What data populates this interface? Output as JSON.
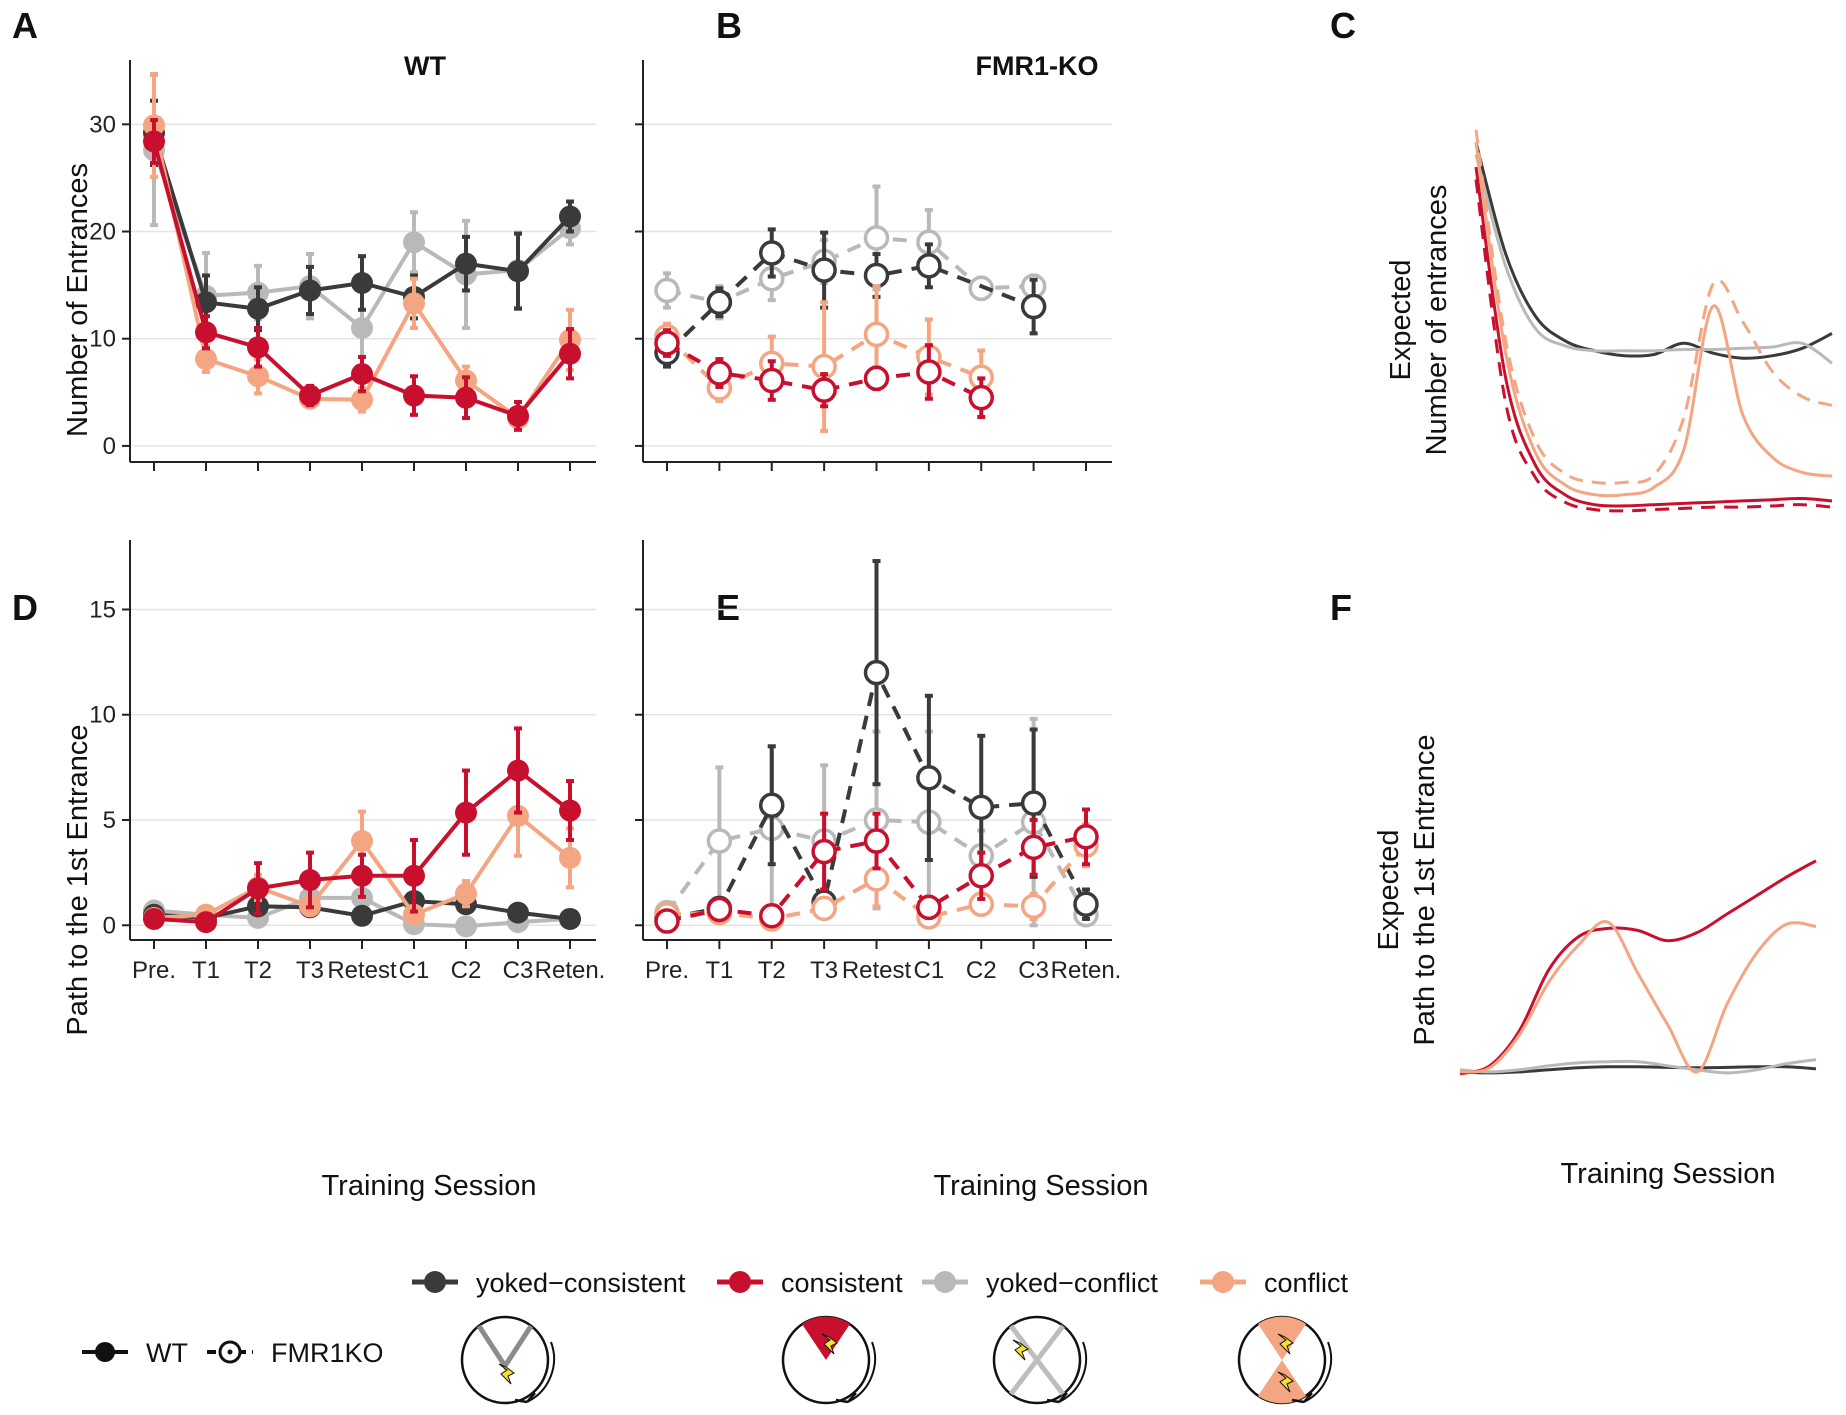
{
  "colors": {
    "yoked_consistent": "#3a3a3a",
    "consistent": "#c8102e",
    "yoked_conflict": "#b9b9b9",
    "conflict": "#f4a582"
  },
  "axes": {
    "entrances_label": "Number of Entrances",
    "path_label": "Path to the 1st Entrance",
    "x_label": "Training Session",
    "expected_entrances_line1": "Expected",
    "expected_entrances_line2": "Number of entrances",
    "expected_path_line1": "Expected",
    "expected_path_line2": "Path to the 1st Entrance"
  },
  "legend": {
    "genotype_wt": "WT",
    "genotype_ko": "FMR1KO",
    "groups": [
      "yoked−consistent",
      "consistent",
      "yoked−conflict",
      "conflict"
    ],
    "icons": [
      "arena-yoked-consistent-icon",
      "arena-consistent-icon",
      "arena-yoked-conflict-icon",
      "arena-conflict-icon"
    ]
  },
  "chart_data": [
    {
      "panel": "A",
      "type": "line",
      "title": "WT",
      "ylabel": "Number of Entrances",
      "categories": [
        "Pre.",
        "T1",
        "T2",
        "T3",
        "Retest",
        "C1",
        "C2",
        "C3",
        "Reten."
      ],
      "ylim": [
        -1.5,
        36
      ],
      "yticks": [
        0,
        10,
        20,
        30
      ],
      "grid": true,
      "show_x_tick_labels": false,
      "series": [
        {
          "key": "yoked_conflict",
          "values": [
            27.6,
            14.0,
            14.3,
            14.9,
            11.0,
            19.0,
            16.0,
            16.4,
            20.3
          ],
          "err": [
            7.0,
            4.0,
            2.5,
            3.0,
            4.0,
            2.8,
            5.0,
            3.5,
            1.5
          ]
        },
        {
          "key": "yoked_consistent",
          "values": [
            29.2,
            13.4,
            12.8,
            14.5,
            15.2,
            13.9,
            17.0,
            16.3,
            21.4
          ],
          "err": [
            3.0,
            2.5,
            2.0,
            2.2,
            2.5,
            2.0,
            2.5,
            3.5,
            1.4
          ]
        },
        {
          "key": "conflict",
          "values": [
            29.9,
            8.1,
            6.5,
            4.4,
            4.3,
            13.3,
            6.1,
            2.6,
            9.9
          ],
          "err": [
            4.8,
            1.2,
            1.6,
            0.8,
            1.1,
            2.3,
            1.3,
            0.8,
            2.8
          ]
        },
        {
          "key": "consistent",
          "values": [
            28.4,
            10.6,
            9.2,
            4.7,
            6.7,
            4.7,
            4.5,
            2.8,
            8.6
          ],
          "err": [
            2.0,
            1.5,
            1.8,
            0.9,
            1.6,
            1.8,
            1.9,
            1.3,
            2.3
          ]
        }
      ]
    },
    {
      "panel": "B",
      "type": "line",
      "title": "FMR1-KO",
      "categories": [
        "Pre.",
        "T1",
        "T2",
        "T3",
        "Retest",
        "C1",
        "C2",
        "C3",
        "Reten."
      ],
      "ylim": [
        -1.5,
        36
      ],
      "yticks": [
        0,
        10,
        20,
        30
      ],
      "grid": true,
      "show_x_tick_labels": false,
      "dashed": true,
      "series": [
        {
          "key": "yoked_conflict",
          "values": [
            14.5,
            13.4,
            15.6,
            17.2,
            19.4,
            19.0,
            14.7,
            14.9,
            null
          ],
          "err": [
            1.6,
            1.5,
            2.0,
            2.0,
            4.8,
            3.0,
            1.0,
            1.0,
            null
          ]
        },
        {
          "key": "yoked_consistent",
          "values": [
            8.7,
            13.4,
            18.0,
            16.4,
            15.9,
            16.8,
            null,
            13.0,
            null
          ],
          "err": [
            1.3,
            1.3,
            2.2,
            3.5,
            2.0,
            2.0,
            null,
            2.5,
            null
          ]
        },
        {
          "key": "conflict",
          "values": [
            10.2,
            5.4,
            7.7,
            7.4,
            10.4,
            8.3,
            6.4,
            null,
            null
          ],
          "err": [
            1.2,
            1.2,
            2.5,
            6.0,
            4.5,
            3.5,
            2.5,
            null,
            null
          ]
        },
        {
          "key": "consistent",
          "values": [
            9.6,
            6.8,
            6.1,
            5.2,
            6.3,
            6.9,
            4.5,
            null,
            null
          ],
          "err": [
            1.2,
            1.3,
            1.8,
            1.5,
            1.0,
            2.5,
            1.8,
            null,
            null
          ]
        }
      ]
    },
    {
      "panel": "C",
      "type": "line",
      "ylabel": "Expected Number of entrances",
      "note": "schematic",
      "series": [
        {
          "key": "yoked_consistent",
          "style": "solid",
          "y": [
            31,
            22,
            17,
            15,
            14.2,
            13.8,
            13.9,
            14.8,
            14.0,
            13.6,
            13.8,
            14.4,
            15.6
          ]
        },
        {
          "key": "yoked_conflict",
          "style": "solid",
          "y": [
            30,
            21,
            16,
            14.6,
            14.2,
            14.2,
            14.2,
            14.3,
            14.3,
            14.4,
            14.5,
            14.8,
            13.2
          ]
        },
        {
          "key": "consistent",
          "style": "solid",
          "y": [
            29,
            12,
            5,
            2.6,
            1.8,
            1.7,
            1.8,
            1.9,
            2.0,
            2.1,
            2.2,
            2.3,
            2.1
          ]
        },
        {
          "key": "consistent",
          "style": "dashed",
          "y": [
            28,
            10,
            4,
            2.0,
            1.4,
            1.3,
            1.4,
            1.5,
            1.6,
            1.6,
            1.7,
            1.8,
            1.6
          ]
        },
        {
          "key": "conflict",
          "style": "solid",
          "y": [
            31,
            14,
            6,
            3.4,
            2.6,
            2.6,
            3.2,
            6.2,
            17.8,
            9.0,
            5.6,
            4.4,
            4.1
          ]
        },
        {
          "key": "conflict",
          "style": "dashed",
          "y": [
            32,
            15,
            7,
            4.3,
            3.6,
            3.6,
            4.2,
            8.8,
            19.6,
            16.5,
            12.5,
            10.5,
            9.8
          ]
        }
      ]
    },
    {
      "panel": "D",
      "type": "line",
      "ylabel": "Path to the 1st Entrance",
      "xlabel": "Training Session",
      "categories": [
        "Pre.",
        "T1",
        "T2",
        "T3",
        "Retest",
        "C1",
        "C2",
        "C3",
        "Reten."
      ],
      "ylim": [
        -0.7,
        18.3
      ],
      "yticks": [
        0,
        5,
        10,
        15
      ],
      "grid": true,
      "show_x_tick_labels": true,
      "series": [
        {
          "key": "yoked_conflict",
          "values": [
            0.7,
            0.5,
            0.35,
            1.3,
            1.3,
            0.05,
            -0.05,
            0.15,
            0.3
          ],
          "err": [
            0.15,
            0.1,
            0.2,
            0.3,
            0.3,
            0.1,
            0.1,
            0.1,
            0.1
          ]
        },
        {
          "key": "yoked_consistent",
          "values": [
            0.5,
            0.35,
            0.9,
            0.85,
            0.45,
            1.15,
            1.0,
            0.6,
            0.3
          ],
          "err": [
            0.2,
            0.1,
            0.2,
            0.2,
            0.2,
            0.3,
            0.3,
            0.3,
            0.1
          ]
        },
        {
          "key": "conflict",
          "values": [
            0.35,
            0.5,
            1.8,
            0.9,
            4.0,
            0.5,
            1.5,
            5.2,
            3.2
          ],
          "err": [
            0.2,
            0.1,
            0.6,
            0.4,
            1.4,
            0.4,
            0.6,
            1.9,
            1.4
          ]
        },
        {
          "key": "consistent",
          "values": [
            0.3,
            0.15,
            1.75,
            2.15,
            2.35,
            2.35,
            5.35,
            7.35,
            5.45
          ],
          "err": [
            0.2,
            0.1,
            1.2,
            1.3,
            1.0,
            1.7,
            2.0,
            2.0,
            1.4
          ]
        }
      ]
    },
    {
      "panel": "E",
      "type": "line",
      "xlabel": "Training Session",
      "categories": [
        "Pre.",
        "T1",
        "T2",
        "T3",
        "Retest",
        "C1",
        "C2",
        "C3",
        "Reten."
      ],
      "ylim": [
        -0.7,
        18.3
      ],
      "yticks": [
        0,
        5,
        10,
        15
      ],
      "grid": true,
      "show_x_tick_labels": true,
      "dashed": true,
      "series": [
        {
          "key": "yoked_conflict",
          "values": [
            0.6,
            4.0,
            4.6,
            4.0,
            5.0,
            4.9,
            3.3,
            4.9,
            0.5
          ],
          "err": [
            0.3,
            3.5,
            3.9,
            3.6,
            4.2,
            4.3,
            1.2,
            4.9,
            0.3
          ]
        },
        {
          "key": "yoked_consistent",
          "values": [
            0.35,
            0.8,
            5.7,
            1.1,
            12.0,
            7.0,
            5.6,
            5.8,
            1.0
          ],
          "err": [
            0.2,
            0.3,
            2.8,
            0.5,
            5.3,
            3.9,
            3.4,
            3.5,
            0.7
          ]
        },
        {
          "key": "conflict",
          "values": [
            0.5,
            0.6,
            0.3,
            0.8,
            2.2,
            0.4,
            1.0,
            0.9,
            3.8
          ],
          "err": [
            0.2,
            0.3,
            0.2,
            0.4,
            1.3,
            0.3,
            0.5,
            0.6,
            1.0
          ]
        },
        {
          "key": "consistent",
          "values": [
            0.2,
            0.75,
            0.45,
            3.5,
            4.0,
            0.85,
            2.35,
            3.7,
            4.2
          ],
          "err": [
            0.1,
            0.4,
            0.2,
            1.8,
            1.3,
            0.5,
            1.1,
            1.3,
            1.3
          ]
        }
      ]
    },
    {
      "panel": "F",
      "type": "line",
      "ylabel": "Expected Path to the 1st Entrance",
      "xlabel": "Training Session",
      "note": "schematic",
      "series": [
        {
          "key": "yoked_consistent",
          "style": "solid",
          "y": [
            0.2,
            0.15,
            0.2,
            0.3,
            0.4,
            0.45,
            0.45,
            0.42,
            0.4,
            0.42,
            0.45,
            0.45,
            0.35
          ]
        },
        {
          "key": "yoked_conflict",
          "style": "solid",
          "y": [
            0.3,
            0.2,
            0.3,
            0.5,
            0.65,
            0.7,
            0.7,
            0.5,
            0.3,
            0.15,
            0.3,
            0.6,
            0.8
          ]
        },
        {
          "key": "consistent",
          "style": "solid",
          "y": [
            0.1,
            0.5,
            2.2,
            5.2,
            6.8,
            7.2,
            7.1,
            6.6,
            7.0,
            7.9,
            8.8,
            9.7,
            10.5
          ]
        },
        {
          "key": "conflict",
          "style": "solid",
          "y": [
            0.2,
            0.4,
            2.0,
            4.6,
            6.4,
            7.5,
            5.0,
            2.5,
            0.2,
            3.5,
            6.0,
            7.4,
            7.3
          ]
        }
      ]
    }
  ]
}
